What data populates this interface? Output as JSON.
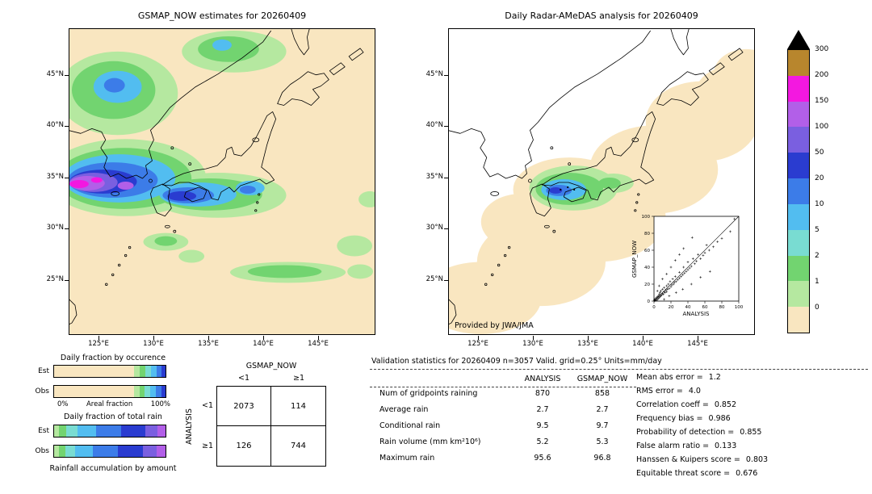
{
  "left_map": {
    "title": "GSMAP_NOW estimates for 20260409"
  },
  "right_map": {
    "title": "Daily Radar-AMeDAS analysis for 20260409",
    "credit": "Provided by JWA/JMA",
    "inset": {
      "xlabel": "ANALYSIS",
      "ylabel": "GSMAP_NOW",
      "ticks": [
        "0",
        "20",
        "40",
        "60",
        "80",
        "100"
      ]
    }
  },
  "axes": {
    "lat_labels": [
      "45°N",
      "40°N",
      "35°N",
      "30°N",
      "25°N"
    ],
    "lon_labels": [
      "125°E",
      "130°E",
      "135°E",
      "140°E",
      "145°E"
    ]
  },
  "colorbar": {
    "overflow_marker": "black-triangle",
    "segments": [
      {
        "label": "300",
        "color": "#b8862d"
      },
      {
        "label": "200",
        "color": "#f318e0"
      },
      {
        "label": "150",
        "color": "#b25fe8"
      },
      {
        "label": "100",
        "color": "#7a5fe0"
      },
      {
        "label": "50",
        "color": "#2a3cd0"
      },
      {
        "label": "20",
        "color": "#3c7ce8"
      },
      {
        "label": "10",
        "color": "#52bdf0"
      },
      {
        "label": "5",
        "color": "#79dcd2"
      },
      {
        "label": "2",
        "color": "#72d470"
      },
      {
        "label": "1",
        "color": "#b5e8a0"
      },
      {
        "label": "0",
        "color": "#f9e6c0"
      }
    ]
  },
  "occurrence_chart": {
    "title": "Daily fraction by occurence",
    "axis_left": "0%",
    "axis_label": "Areal fraction",
    "axis_right": "100%"
  },
  "totalrain_chart": {
    "title": "Daily fraction of total rain",
    "caption": "Rainfall accumulation by amount"
  },
  "contingency": {
    "title": "GSMAP_NOW",
    "side_label": "ANALYSIS",
    "col_labels": [
      "<1",
      "≥1"
    ],
    "row_labels": [
      "<1",
      "≥1"
    ],
    "cells": [
      [
        "2073",
        "114"
      ],
      [
        "126",
        "744"
      ]
    ]
  },
  "stats": {
    "header": "Validation statistics for 20260409  n=3057 Valid. grid=0.25° Units=mm/day",
    "columns": [
      "ANALYSIS",
      "GSMAP_NOW"
    ],
    "rows": [
      {
        "label": "Num of gridpoints raining",
        "analysis": "870",
        "gsmap": "858"
      },
      {
        "label": "Average rain",
        "analysis": "2.7",
        "gsmap": "2.7"
      },
      {
        "label": "Conditional rain",
        "analysis": "9.5",
        "gsmap": "9.7"
      },
      {
        "label": "Rain volume (mm km²10⁶)",
        "analysis": "5.2",
        "gsmap": "5.3"
      },
      {
        "label": "Maximum rain",
        "analysis": "95.6",
        "gsmap": "96.8"
      }
    ],
    "metrics": [
      {
        "label": "Mean abs error =",
        "value": "1.2"
      },
      {
        "label": "RMS error =",
        "value": "4.0"
      },
      {
        "label": "Correlation coeff =",
        "value": "0.852"
      },
      {
        "label": "Frequency bias =",
        "value": "0.986"
      },
      {
        "label": "Probability of detection =",
        "value": "0.855"
      },
      {
        "label": "False alarm ratio =",
        "value": "0.133"
      },
      {
        "label": "Hanssen & Kuipers score =",
        "value": "0.803"
      },
      {
        "label": "Equitable threat score =",
        "value": "0.676"
      }
    ]
  },
  "chart_data": [
    {
      "id": "gsmap_map",
      "type": "heatmap",
      "title": "GSMAP_NOW estimates for 20260409",
      "xlabel": "longitude",
      "ylabel": "latitude",
      "x_ticks": [
        "125°E",
        "130°E",
        "135°E",
        "140°E",
        "145°E"
      ],
      "y_ticks": [
        "45°N",
        "40°N",
        "35°N",
        "30°N",
        "25°N"
      ],
      "scale_levels_mm_day": [
        0,
        1,
        2,
        5,
        10,
        20,
        50,
        100,
        150,
        200,
        300
      ],
      "annotations": "Heavy rain band (20-300 mm/day, blue to magenta core) over the East China Sea, Korea Strait and western Japan near 33-36N 122-133E; light-to-moderate rain (1-20) over the NW continent and scattered green bands SE of Japan near 29-31N"
    },
    {
      "id": "radar_map",
      "type": "heatmap",
      "title": "Daily Radar-AMeDAS analysis for 20260409",
      "xlabel": "longitude",
      "ylabel": "latitude",
      "x_ticks": [
        "125°E",
        "130°E",
        "135°E",
        "140°E",
        "145°E"
      ],
      "y_ticks": [
        "45°N",
        "40°N",
        "35°N",
        "30°N",
        "25°N"
      ],
      "scale_levels_mm_day": [
        0,
        1,
        2,
        5,
        10,
        20,
        50,
        100,
        150,
        200,
        300
      ],
      "annotations": "Radar coverage swath (0-1 mm/day, beige) along the Japanese archipelago from SW islands to Hokkaido; rain cluster (2-50 mm/day, green-cyan-blue) centred on western Honshu and Shikoku around 34N 132-134E"
    },
    {
      "id": "inset_scatter",
      "type": "scatter",
      "xlabel": "ANALYSIS",
      "ylabel": "GSMAP_NOW",
      "xlim": [
        0,
        100
      ],
      "ylim": [
        0,
        100
      ],
      "x_ticks": [
        0,
        20,
        40,
        60,
        80,
        100
      ],
      "y_ticks": [
        0,
        20,
        40,
        60,
        80,
        100
      ],
      "diagonal_line": true,
      "points": [
        [
          0.5,
          0.5
        ],
        [
          1,
          0.5
        ],
        [
          0.5,
          1.5
        ],
        [
          1,
          2
        ],
        [
          2,
          1
        ],
        [
          2,
          3
        ],
        [
          3,
          1
        ],
        [
          3,
          4
        ],
        [
          4,
          2
        ],
        [
          4,
          5
        ],
        [
          5,
          3
        ],
        [
          5,
          6
        ],
        [
          6,
          4
        ],
        [
          6,
          8
        ],
        [
          7,
          5
        ],
        [
          7,
          10
        ],
        [
          8,
          6
        ],
        [
          8,
          12
        ],
        [
          9,
          7
        ],
        [
          10,
          9
        ],
        [
          10,
          14
        ],
        [
          11,
          8
        ],
        [
          12,
          11
        ],
        [
          12,
          16
        ],
        [
          13,
          10
        ],
        [
          14,
          13
        ],
        [
          15,
          11
        ],
        [
          15,
          18
        ],
        [
          16,
          14
        ],
        [
          17,
          20
        ],
        [
          18,
          15
        ],
        [
          19,
          23
        ],
        [
          20,
          17
        ],
        [
          21,
          19
        ],
        [
          22,
          26
        ],
        [
          23,
          20
        ],
        [
          24,
          22
        ],
        [
          25,
          29
        ],
        [
          26,
          23
        ],
        [
          28,
          25
        ],
        [
          30,
          27
        ],
        [
          30,
          34
        ],
        [
          32,
          29
        ],
        [
          34,
          31
        ],
        [
          35,
          40
        ],
        [
          36,
          33
        ],
        [
          38,
          35
        ],
        [
          40,
          37
        ],
        [
          40,
          46
        ],
        [
          42,
          39
        ],
        [
          44,
          41
        ],
        [
          46,
          50
        ],
        [
          48,
          44
        ],
        [
          50,
          47
        ],
        [
          52,
          55
        ],
        [
          55,
          50
        ],
        [
          58,
          54
        ],
        [
          60,
          57
        ],
        [
          62,
          66
        ],
        [
          65,
          60
        ],
        [
          70,
          64
        ],
        [
          75,
          70
        ],
        [
          80,
          74
        ],
        [
          90,
          82
        ],
        [
          95,
          97
        ],
        [
          15,
          32
        ],
        [
          10,
          26
        ],
        [
          6,
          18
        ],
        [
          4,
          12
        ],
        [
          20,
          40
        ],
        [
          25,
          48
        ],
        [
          30,
          55
        ],
        [
          35,
          62
        ],
        [
          45,
          75
        ],
        [
          12,
          2
        ],
        [
          18,
          6
        ],
        [
          26,
          10
        ],
        [
          34,
          14
        ],
        [
          44,
          20
        ],
        [
          55,
          28
        ],
        [
          66,
          35
        ]
      ]
    },
    {
      "id": "occurrence_bars",
      "type": "bar",
      "subtype": "stacked-horizontal-percent",
      "title": "Daily fraction by occurence",
      "categories": [
        "Est",
        "Obs"
      ],
      "xlabel": "Areal fraction",
      "xlim": [
        "0%",
        "100%"
      ],
      "rows": [
        {
          "label": "Est",
          "segments": [
            {
              "color": "#f9e6c0",
              "pct": 71.9
            },
            {
              "color": "#b5e8a0",
              "pct": 5
            },
            {
              "color": "#72d470",
              "pct": 5
            },
            {
              "color": "#79dcd2",
              "pct": 5
            },
            {
              "color": "#52bdf0",
              "pct": 5
            },
            {
              "color": "#3c7ce8",
              "pct": 4.5
            },
            {
              "color": "#2a3cd0",
              "pct": 3.6
            }
          ]
        },
        {
          "label": "Obs",
          "segments": [
            {
              "color": "#f9e6c0",
              "pct": 71.5
            },
            {
              "color": "#b5e8a0",
              "pct": 5
            },
            {
              "color": "#72d470",
              "pct": 5
            },
            {
              "color": "#79dcd2",
              "pct": 5
            },
            {
              "color": "#52bdf0",
              "pct": 5
            },
            {
              "color": "#3c7ce8",
              "pct": 5
            },
            {
              "color": "#2a3cd0",
              "pct": 3.5
            }
          ]
        }
      ]
    },
    {
      "id": "totalrain_bars",
      "type": "bar",
      "subtype": "stacked-horizontal-percent",
      "title": "Daily fraction of total rain",
      "categories": [
        "Est",
        "Obs"
      ],
      "xlabel": "Rainfall accumulation by amount",
      "rows": [
        {
          "label": "Est",
          "segments": [
            {
              "color": "#b5e8a0",
              "pct": 4
            },
            {
              "color": "#72d470",
              "pct": 7
            },
            {
              "color": "#79dcd2",
              "pct": 10
            },
            {
              "color": "#52bdf0",
              "pct": 17
            },
            {
              "color": "#3c7ce8",
              "pct": 22
            },
            {
              "color": "#2a3cd0",
              "pct": 22
            },
            {
              "color": "#7a5fe0",
              "pct": 11
            },
            {
              "color": "#b25fe8",
              "pct": 7
            }
          ]
        },
        {
          "label": "Obs",
          "segments": [
            {
              "color": "#b5e8a0",
              "pct": 4
            },
            {
              "color": "#72d470",
              "pct": 6
            },
            {
              "color": "#79dcd2",
              "pct": 9
            },
            {
              "color": "#52bdf0",
              "pct": 16
            },
            {
              "color": "#3c7ce8",
              "pct": 22
            },
            {
              "color": "#2a3cd0",
              "pct": 23
            },
            {
              "color": "#7a5fe0",
              "pct": 12
            },
            {
              "color": "#b25fe8",
              "pct": 8
            }
          ]
        }
      ]
    },
    {
      "id": "contingency_table",
      "type": "table",
      "title": "GSMAP_NOW vs ANALYSIS contingency, threshold 1 mm/day",
      "columns": [
        "GSMAP_NOW <1",
        "GSMAP_NOW ≥1"
      ],
      "rows": [
        "ANALYSIS <1",
        "ANALYSIS ≥1"
      ],
      "values": [
        [
          2073,
          114
        ],
        [
          126,
          744
        ]
      ]
    },
    {
      "id": "validation_stats",
      "type": "table",
      "title": "Validation statistics for 20260409",
      "n": 3057,
      "grid": "0.25°",
      "units": "mm/day",
      "columns": [
        "ANALYSIS",
        "GSMAP_NOW"
      ],
      "rows": [
        [
          "Num of gridpoints raining",
          870,
          858
        ],
        [
          "Average rain",
          2.7,
          2.7
        ],
        [
          "Conditional rain",
          9.5,
          9.7
        ],
        [
          "Rain volume (mm km²10⁶)",
          5.2,
          5.3
        ],
        [
          "Maximum rain",
          95.6,
          96.8
        ]
      ],
      "scores": {
        "Mean abs error": 1.2,
        "RMS error": 4.0,
        "Correlation coeff": 0.852,
        "Frequency bias": 0.986,
        "Probability of detection": 0.855,
        "False alarm ratio": 0.133,
        "Hanssen & Kuipers score": 0.803,
        "Equitable threat score": 0.676
      }
    }
  ]
}
